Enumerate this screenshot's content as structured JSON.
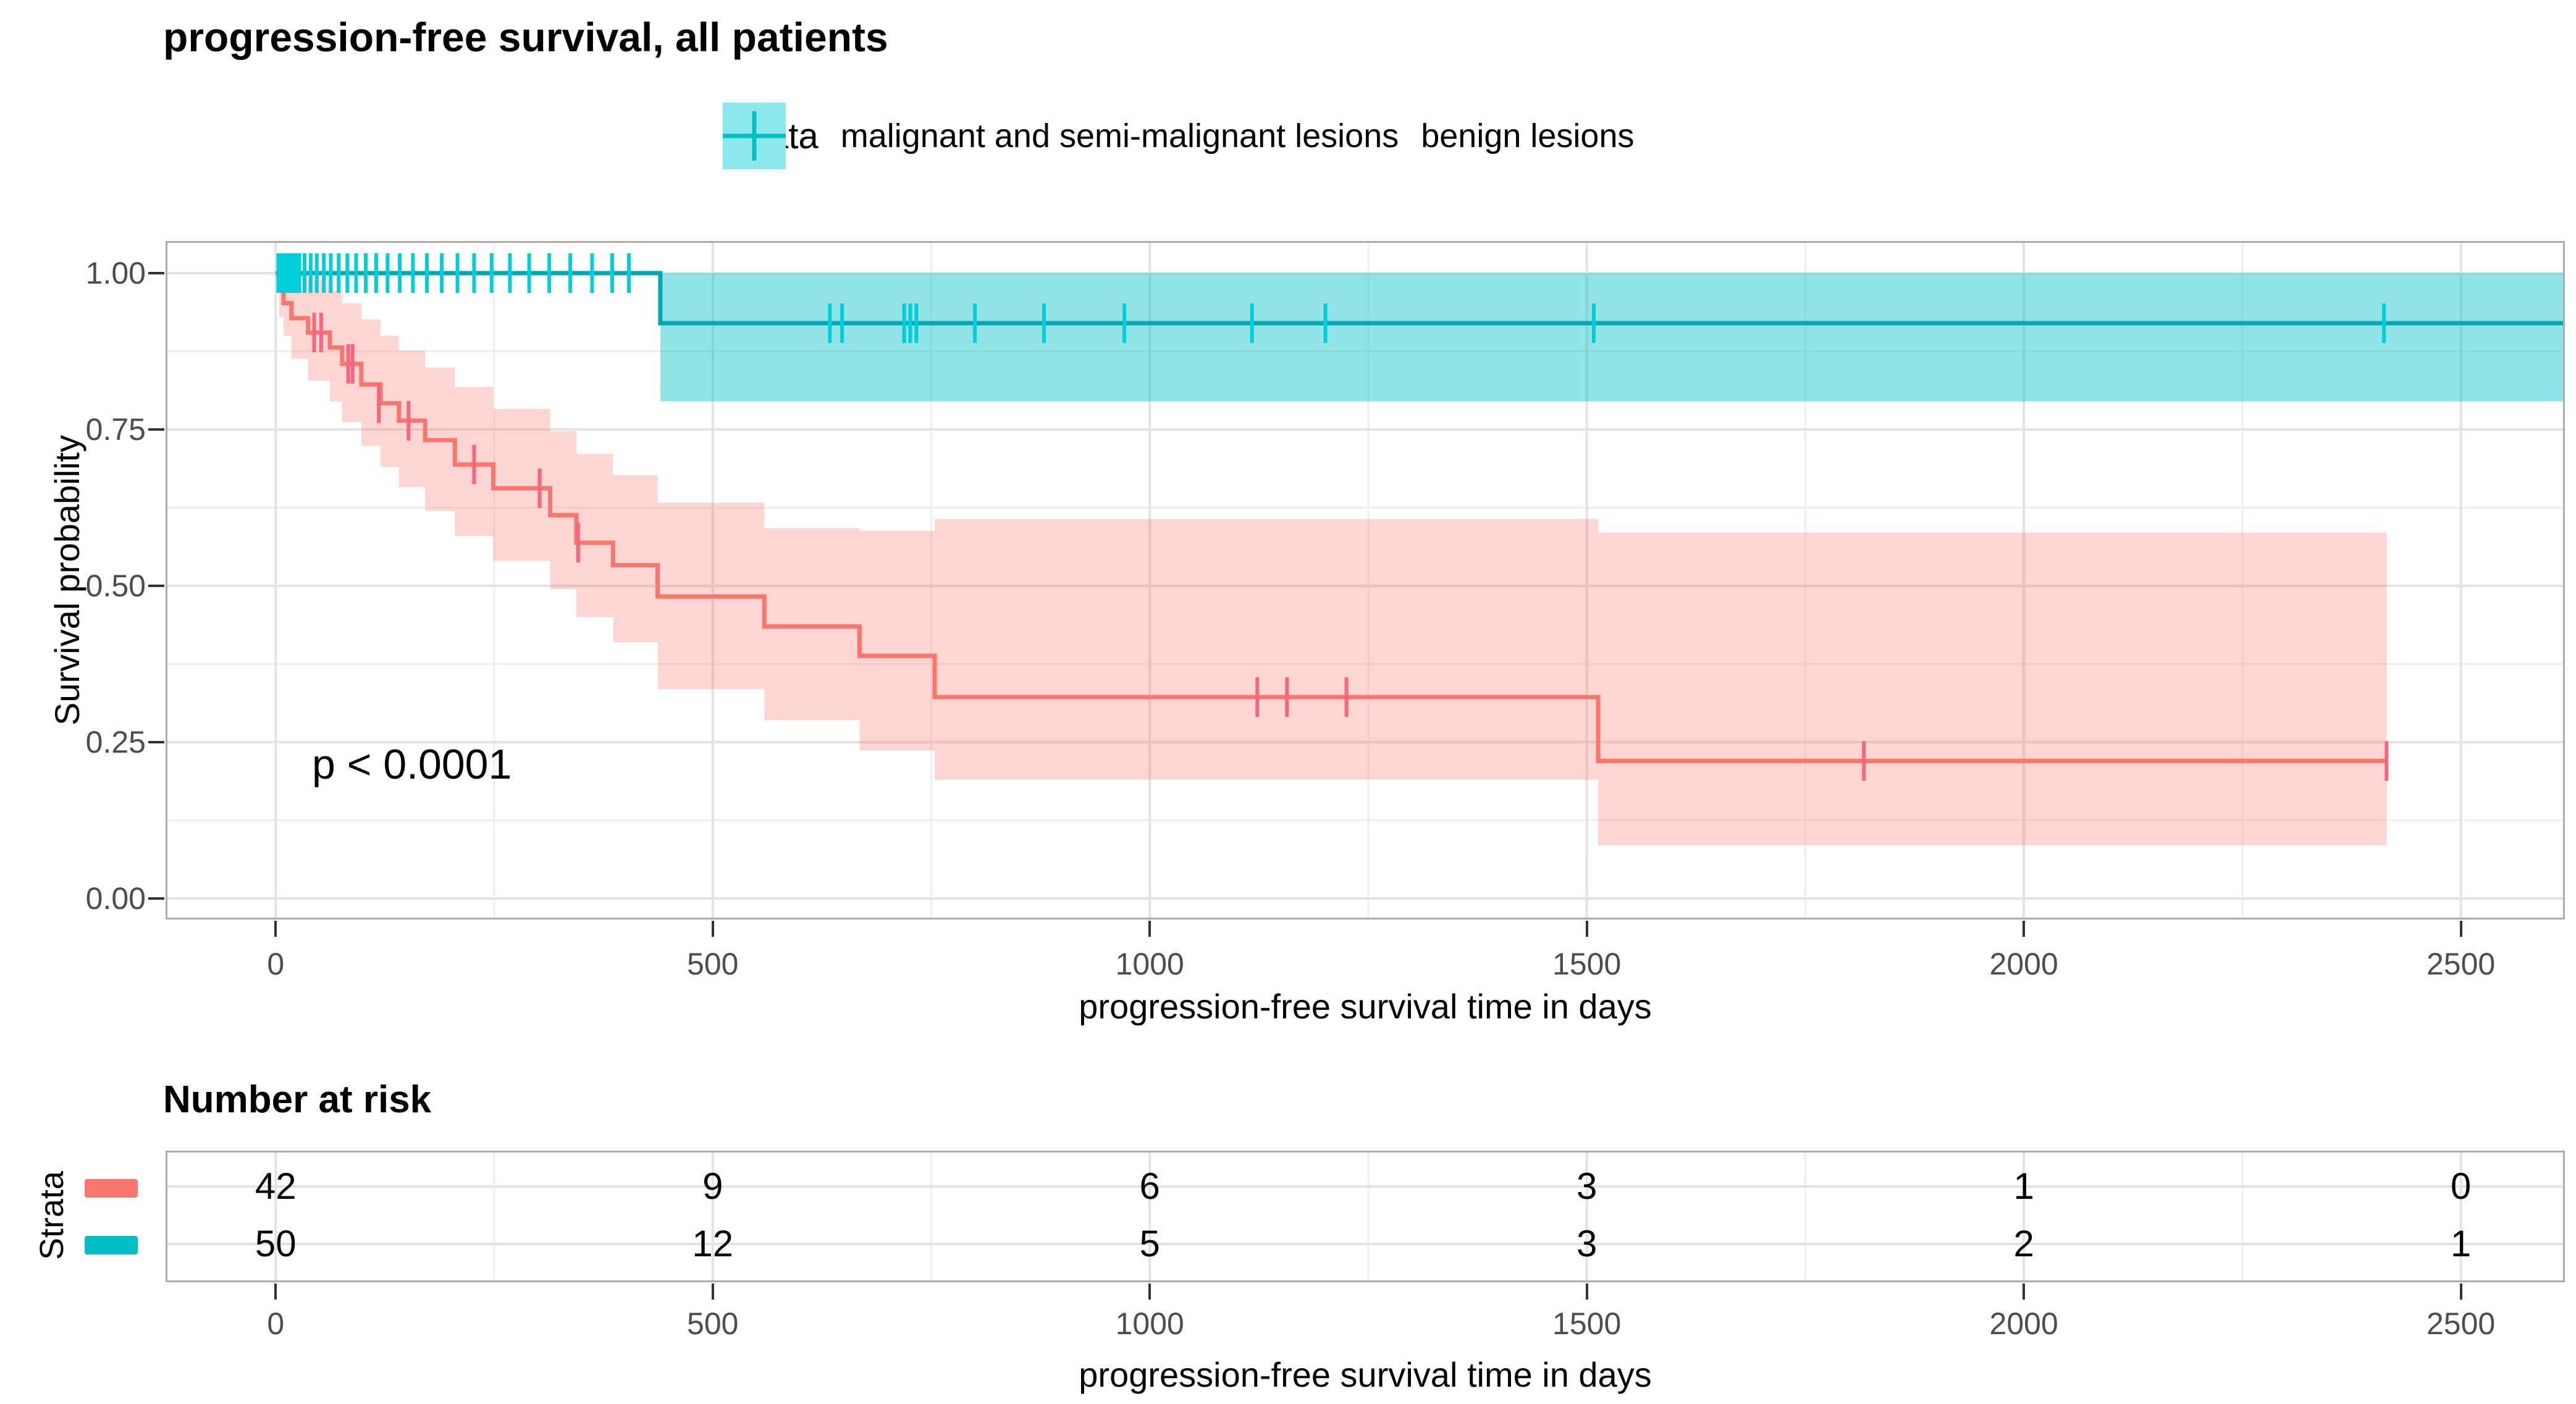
{
  "title": "progression-free survival, all patients",
  "pvalue": "p < 0.0001",
  "legend": {
    "title": "Strata",
    "items": [
      {
        "label": "malignant and semi-malignant lesions",
        "color": "#F8766D",
        "fill": "#FBD5D2"
      },
      {
        "label": "benign lesions",
        "color": "#00BFC4",
        "fill": "#8CE8EC"
      }
    ]
  },
  "main_axis": {
    "x_title": "progression-free survival time in days",
    "y_title": "Survival probability"
  },
  "risk_table": {
    "title": "Number at risk",
    "y_title": "Strata",
    "x_title": "progression-free survival time in days",
    "rows": [
      {
        "name": "malignant and semi-malignant lesions",
        "color": "#F8766D",
        "counts": [
          "42",
          "9",
          "6",
          "3",
          "1",
          "0"
        ]
      },
      {
        "name": "benign lesions",
        "color": "#00BFC4",
        "counts": [
          "50",
          "12",
          "5",
          "3",
          "2",
          "1"
        ]
      }
    ]
  },
  "chart_data": {
    "type": "line",
    "subtype": "kaplan-meier-step-with-confidence-bands",
    "title": "progression-free survival, all patients",
    "xlabel": "progression-free survival time in days",
    "ylabel": "Survival probability",
    "xlim": [
      -126,
      2619
    ],
    "ylim": [
      -0.034,
      1.051
    ],
    "grid": true,
    "legend_position": "top",
    "x_ticks": [
      {
        "v": 0,
        "label": "0"
      },
      {
        "v": 500,
        "label": "500"
      },
      {
        "v": 1000,
        "label": "1000"
      },
      {
        "v": 1500,
        "label": "1500"
      },
      {
        "v": 2000,
        "label": "2000"
      },
      {
        "v": 2500,
        "label": "2500"
      }
    ],
    "x_minor": [
      250,
      750,
      1250,
      1750,
      2250
    ],
    "y_ticks": [
      {
        "v": 0.0,
        "label": "0.00"
      },
      {
        "v": 0.25,
        "label": "0.25"
      },
      {
        "v": 0.5,
        "label": "0.50"
      },
      {
        "v": 0.75,
        "label": "0.75"
      },
      {
        "v": 1.0,
        "label": "1.00"
      }
    ],
    "y_minor": [
      0.125,
      0.375,
      0.625,
      0.875
    ],
    "annotation": {
      "text": "p < 0.0001",
      "x_day": 110,
      "y_prob": 0.215
    },
    "style": {
      "grid_major": "#E3E3E3",
      "grid_minor": "#EFEFEF",
      "panel_border": "#ACACAC",
      "tick_label_color": "#4D4D4D",
      "background": "#FFFFFF"
    },
    "series": [
      {
        "name": "malignant and semi-malignant lesions",
        "color": "#F8766D",
        "censor_color": "#F8657F",
        "band_rgba": "rgba(248,118,109,0.30)",
        "steps": [
          [
            0,
            1.0
          ],
          [
            4,
            0.976
          ],
          [
            9,
            0.952
          ],
          [
            18,
            0.928
          ],
          [
            37,
            0.905
          ],
          [
            62,
            0.881
          ],
          [
            76,
            0.855
          ],
          [
            98,
            0.822
          ],
          [
            120,
            0.792
          ],
          [
            141,
            0.764
          ],
          [
            171,
            0.733
          ],
          [
            205,
            0.694
          ],
          [
            249,
            0.656
          ],
          [
            314,
            0.613
          ],
          [
            344,
            0.569
          ],
          [
            386,
            0.533
          ],
          [
            437,
            0.483
          ],
          [
            559,
            0.435
          ],
          [
            668,
            0.388
          ],
          [
            754,
            0.322
          ],
          [
            1513,
            0.22
          ],
          [
            2415,
            0.22
          ]
        ],
        "censors": [
          [
            44,
            0.905
          ],
          [
            52,
            0.905
          ],
          [
            83,
            0.855
          ],
          [
            88,
            0.855
          ],
          [
            118,
            0.792
          ],
          [
            152,
            0.764
          ],
          [
            227,
            0.694
          ],
          [
            302,
            0.656
          ],
          [
            346,
            0.569
          ],
          [
            1123,
            0.322
          ],
          [
            1157,
            0.322
          ],
          [
            1225,
            0.322
          ],
          [
            1817,
            0.22
          ],
          [
            2415,
            0.22
          ]
        ],
        "ci_upper": [
          [
            0,
            1.0
          ],
          [
            18,
            1.0
          ],
          [
            37,
            0.99
          ],
          [
            62,
            0.972
          ],
          [
            76,
            0.952
          ],
          [
            98,
            0.926
          ],
          [
            120,
            0.9
          ],
          [
            141,
            0.876
          ],
          [
            171,
            0.849
          ],
          [
            205,
            0.818
          ],
          [
            249,
            0.783
          ],
          [
            314,
            0.747
          ],
          [
            344,
            0.711
          ],
          [
            386,
            0.677
          ],
          [
            437,
            0.633
          ],
          [
            559,
            0.592
          ],
          [
            668,
            0.588
          ],
          [
            754,
            0.607
          ],
          [
            1513,
            0.585
          ],
          [
            2415,
            0.585
          ]
        ],
        "ci_lower": [
          [
            0,
            1.0
          ],
          [
            4,
            0.93
          ],
          [
            9,
            0.9
          ],
          [
            18,
            0.863
          ],
          [
            37,
            0.828
          ],
          [
            62,
            0.795
          ],
          [
            76,
            0.762
          ],
          [
            98,
            0.724
          ],
          [
            120,
            0.69
          ],
          [
            141,
            0.658
          ],
          [
            171,
            0.62
          ],
          [
            205,
            0.58
          ],
          [
            249,
            0.54
          ],
          [
            314,
            0.495
          ],
          [
            344,
            0.45
          ],
          [
            386,
            0.41
          ],
          [
            437,
            0.335
          ],
          [
            559,
            0.285
          ],
          [
            668,
            0.237
          ],
          [
            754,
            0.19
          ],
          [
            1513,
            0.085
          ],
          [
            2415,
            0.085
          ]
        ],
        "number_at_risk": [
          42,
          9,
          6,
          3,
          1,
          0
        ]
      },
      {
        "name": "benign lesions",
        "color": "#00BFC4",
        "line_color": "#00A9B2",
        "censor_color": "#00CFDB",
        "band_rgba": "rgba(0,191,196,0.43)",
        "steps": [
          [
            0,
            1.0
          ],
          [
            440,
            0.92
          ],
          [
            2619,
            0.92
          ]
        ],
        "censors": [
          [
            3,
            1
          ],
          [
            6,
            1
          ],
          [
            9,
            1
          ],
          [
            12,
            1
          ],
          [
            15,
            1
          ],
          [
            18,
            1
          ],
          [
            21,
            1
          ],
          [
            24,
            1
          ],
          [
            27,
            1
          ],
          [
            33,
            1
          ],
          [
            40,
            1
          ],
          [
            47,
            1
          ],
          [
            55,
            1
          ],
          [
            63,
            1
          ],
          [
            72,
            1
          ],
          [
            82,
            1
          ],
          [
            92,
            1
          ],
          [
            103,
            1
          ],
          [
            115,
            1
          ],
          [
            128,
            1
          ],
          [
            142,
            1
          ],
          [
            157,
            1
          ],
          [
            173,
            1
          ],
          [
            190,
            1
          ],
          [
            208,
            1
          ],
          [
            227,
            1
          ],
          [
            247,
            1
          ],
          [
            268,
            1
          ],
          [
            290,
            1
          ],
          [
            313,
            1
          ],
          [
            337,
            1
          ],
          [
            362,
            1
          ],
          [
            385,
            1
          ],
          [
            404,
            1
          ],
          [
            634,
            0.92
          ],
          [
            648,
            0.92
          ],
          [
            719,
            0.92
          ],
          [
            726,
            0.92
          ],
          [
            733,
            0.92
          ],
          [
            800,
            0.92
          ],
          [
            879,
            0.92
          ],
          [
            971,
            0.92
          ],
          [
            1117,
            0.92
          ],
          [
            1201,
            0.92
          ],
          [
            1508,
            0.92
          ],
          [
            2412,
            0.92
          ]
        ],
        "ci_upper": [
          [
            440,
            1.0
          ],
          [
            2619,
            1.0
          ]
        ],
        "ci_lower": [
          [
            440,
            0.795
          ],
          [
            2619,
            0.795
          ]
        ],
        "number_at_risk": [
          50,
          12,
          5,
          3,
          2,
          1
        ]
      }
    ]
  }
}
